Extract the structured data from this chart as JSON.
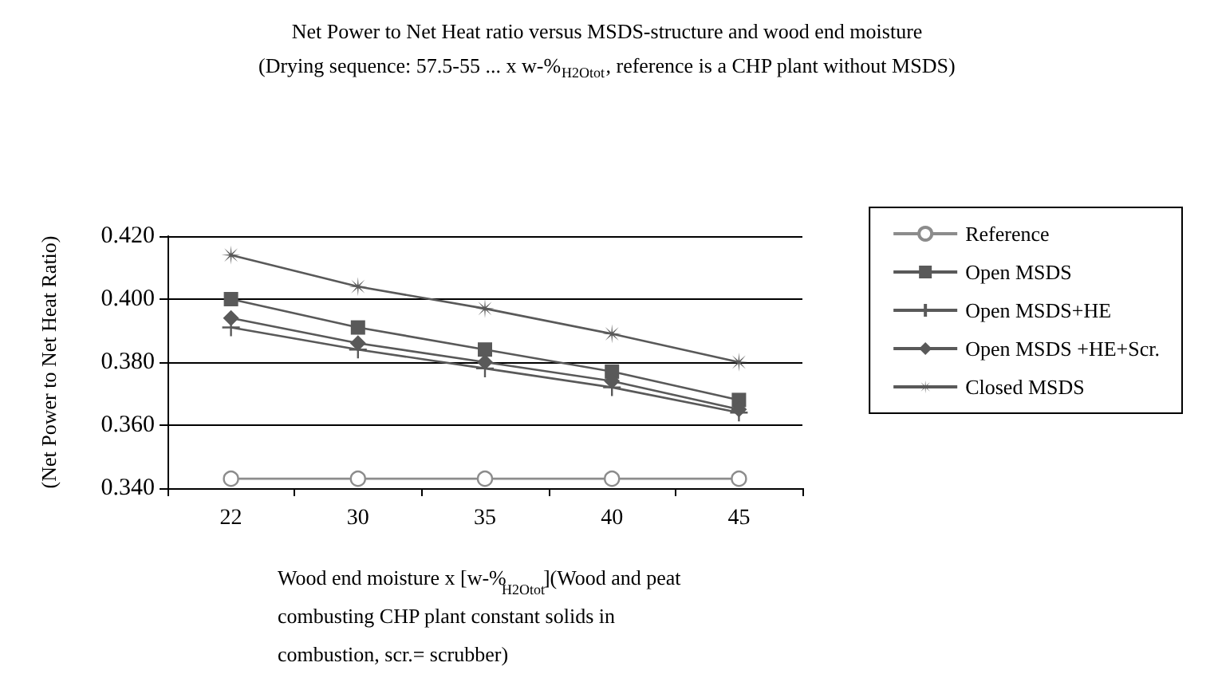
{
  "chart_data": {
    "type": "line",
    "title": "Net Power to Net Heat ratio versus MSDS-structure and wood end moisture",
    "subtitle": "(Drying sequence: 57.5-55 ... x w-%$_{H2Otot}$, reference is a CHP plant without MSDS)",
    "xlabel": "Wood end moisture x [w-%$_{H2Otot}$](Wood and peat combusting CHP plant constant solids in combustion, scr.= scrubber)",
    "ylabel": "(Net Power to Net Heat Ratio)",
    "categories": [
      "22",
      "30",
      "35",
      "40",
      "45"
    ],
    "series": [
      {
        "name": "Reference",
        "color": "#8c8c8c",
        "marker": "circle",
        "values": [
          0.343,
          0.343,
          0.343,
          0.343,
          0.343
        ]
      },
      {
        "name": "Open MSDS",
        "color": "#595959",
        "marker": "square",
        "values": [
          0.4,
          0.391,
          0.384,
          0.377,
          0.368
        ]
      },
      {
        "name": "Open MSDS+HE",
        "color": "#595959",
        "marker": "cross",
        "values": [
          0.391,
          0.384,
          0.378,
          0.372,
          0.364
        ]
      },
      {
        "name": "Open MSDS +HE+Scr.",
        "color": "#595959",
        "marker": "diamond",
        "values": [
          0.394,
          0.386,
          0.38,
          0.374,
          0.365
        ]
      },
      {
        "name": "Closed MSDS",
        "color": "#595959",
        "marker": "star",
        "values": [
          0.414,
          0.404,
          0.397,
          0.389,
          0.38
        ]
      }
    ],
    "ylim": [
      0.34,
      0.42
    ],
    "yticks": [
      {
        "value": 0.34,
        "label": "0.340"
      },
      {
        "value": 0.36,
        "label": "0.360"
      },
      {
        "value": 0.38,
        "label": "0.380"
      },
      {
        "value": 0.4,
        "label": "0.400"
      },
      {
        "value": 0.42,
        "label": "0.420"
      }
    ],
    "grid": "y",
    "legend": "right",
    "line_style": "solid"
  }
}
